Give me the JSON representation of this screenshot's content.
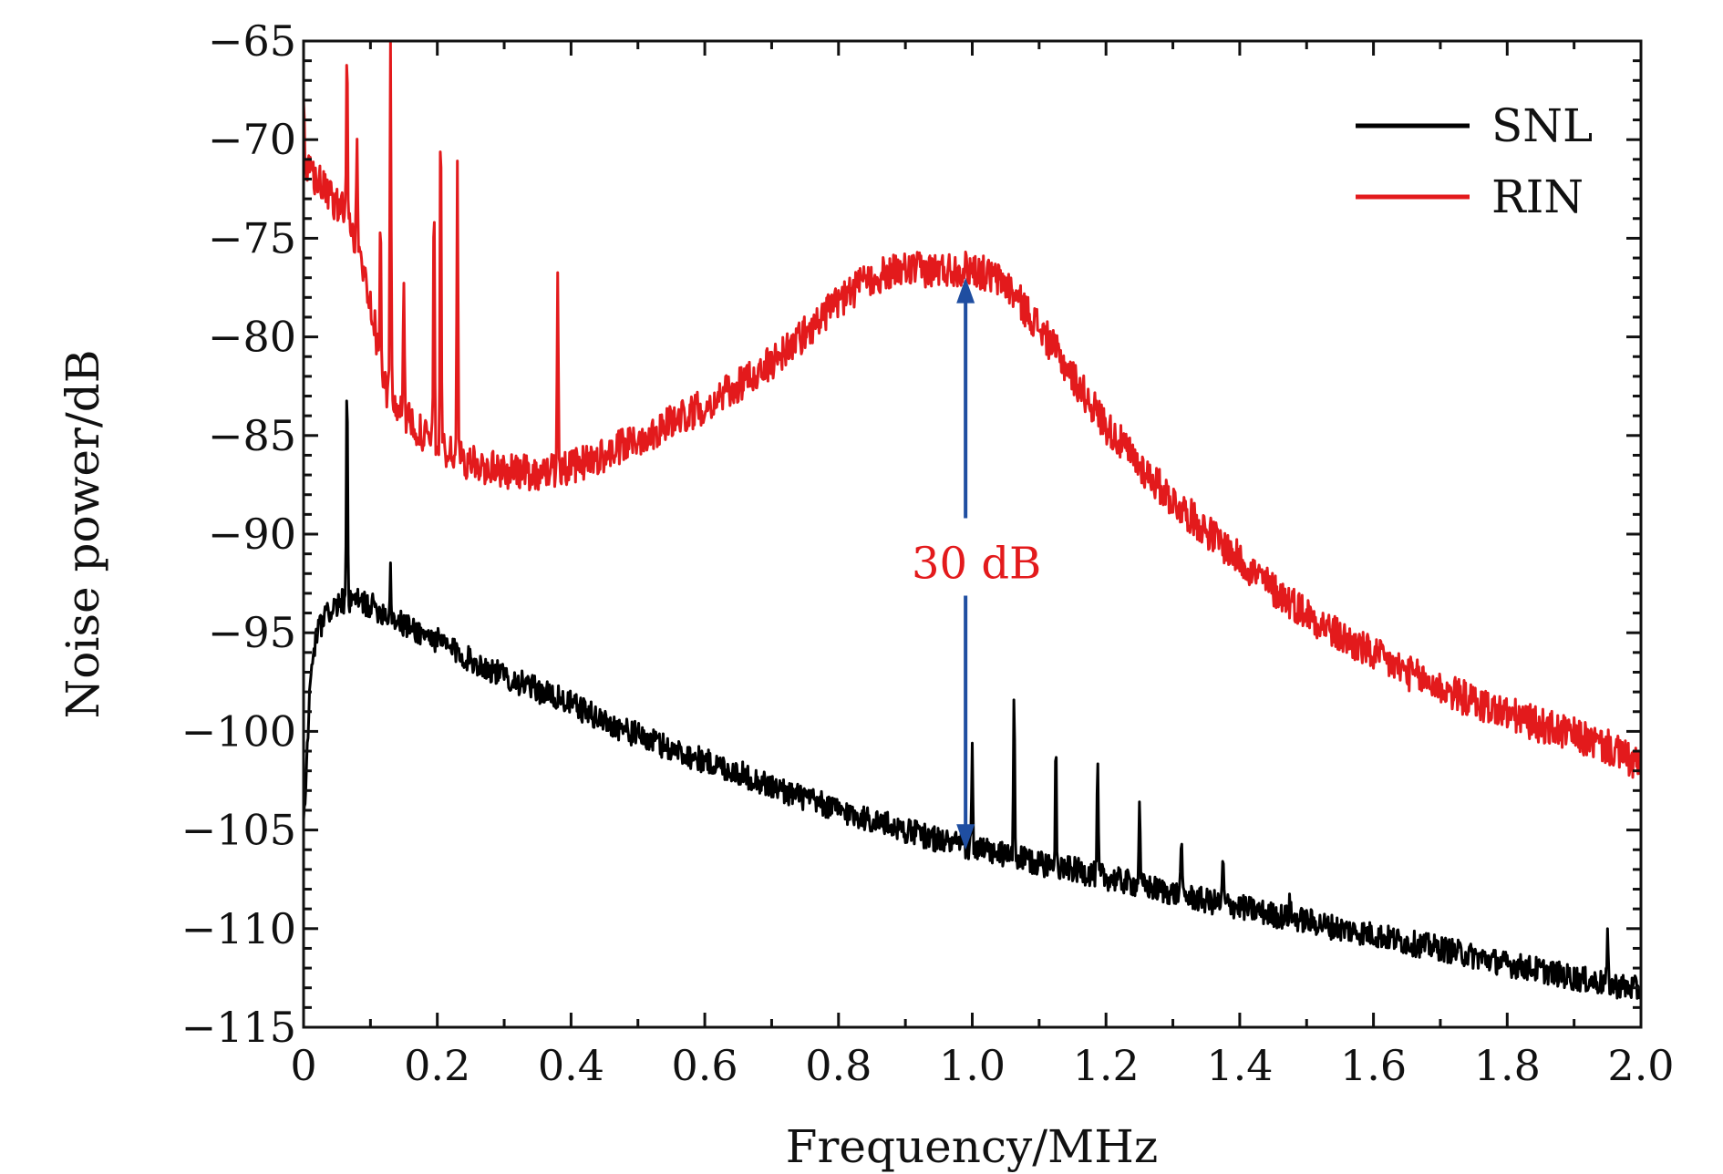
{
  "chart_data": {
    "type": "line",
    "title": "",
    "xlabel": "Frequency/MHz",
    "ylabel": "Noise power/dB",
    "xlim": [
      0,
      2.0
    ],
    "ylim": [
      -115,
      -65
    ],
    "xticks": [
      0,
      0.2,
      0.4,
      0.6,
      0.8,
      1.0,
      1.2,
      1.4,
      1.6,
      1.8,
      2.0
    ],
    "xtick_labels": [
      "0",
      "0.2",
      "0.4",
      "0.6",
      "0.8",
      "1.0",
      "1.2",
      "1.4",
      "1.6",
      "1.8",
      "2.0"
    ],
    "yticks": [
      -65,
      -70,
      -75,
      -80,
      -85,
      -90,
      -95,
      -100,
      -105,
      -110,
      -115
    ],
    "ytick_labels": [
      "−65",
      "−70",
      "−75",
      "−80",
      "−85",
      "−90",
      "−95",
      "−100",
      "−105",
      "−110",
      "−115"
    ],
    "grid": false,
    "legend_position": "top-right",
    "series": [
      {
        "name": "SNL",
        "color": "#000000",
        "x": [
          0.0,
          0.01,
          0.02,
          0.04,
          0.06,
          0.08,
          0.1,
          0.15,
          0.2,
          0.25,
          0.3,
          0.35,
          0.4,
          0.45,
          0.5,
          0.55,
          0.6,
          0.65,
          0.7,
          0.75,
          0.8,
          0.85,
          0.9,
          0.95,
          1.0,
          1.05,
          1.1,
          1.15,
          1.2,
          1.25,
          1.3,
          1.35,
          1.4,
          1.45,
          1.5,
          1.55,
          1.6,
          1.65,
          1.7,
          1.75,
          1.8,
          1.85,
          1.9,
          1.95,
          2.0
        ],
        "y": [
          -105,
          -97.5,
          -95.0,
          -93.8,
          -93.4,
          -93.4,
          -93.6,
          -94.6,
          -95.4,
          -96.4,
          -97.2,
          -97.9,
          -98.6,
          -99.5,
          -100.2,
          -100.9,
          -101.5,
          -102.1,
          -102.8,
          -103.4,
          -104.0,
          -104.5,
          -105.0,
          -105.5,
          -105.9,
          -106.3,
          -106.7,
          -107.0,
          -107.4,
          -107.8,
          -108.2,
          -108.6,
          -108.9,
          -109.3,
          -109.6,
          -110.0,
          -110.3,
          -110.7,
          -111.0,
          -111.4,
          -111.8,
          -112.1,
          -112.5,
          -112.8,
          -113.1
        ],
        "spikes": [
          {
            "x": 0.065,
            "y": -82.0
          },
          {
            "x": 0.13,
            "y": -91.8
          },
          {
            "x": 1.0,
            "y": -100.8
          },
          {
            "x": 1.0625,
            "y": -97.6
          },
          {
            "x": 1.125,
            "y": -99.7
          },
          {
            "x": 1.1875,
            "y": -101.8
          },
          {
            "x": 1.25,
            "y": -103.3
          },
          {
            "x": 1.3125,
            "y": -105.2
          },
          {
            "x": 1.375,
            "y": -106.3
          },
          {
            "x": 1.475,
            "y": -108.5
          },
          {
            "x": 1.95,
            "y": -110.6
          }
        ]
      },
      {
        "name": "RIN",
        "color": "#e31a1c",
        "x": [
          0.0,
          0.02,
          0.04,
          0.06,
          0.08,
          0.1,
          0.12,
          0.15,
          0.18,
          0.2,
          0.25,
          0.3,
          0.35,
          0.4,
          0.45,
          0.5,
          0.55,
          0.6,
          0.65,
          0.7,
          0.75,
          0.8,
          0.85,
          0.9,
          0.95,
          1.0,
          1.05,
          1.1,
          1.15,
          1.2,
          1.25,
          1.3,
          1.35,
          1.4,
          1.45,
          1.5,
          1.55,
          1.6,
          1.65,
          1.7,
          1.75,
          1.8,
          1.85,
          1.9,
          1.95,
          2.0
        ],
        "y": [
          -71.5,
          -72.0,
          -73.0,
          -73.5,
          -75.5,
          -78.0,
          -82.5,
          -84.0,
          -85.0,
          -85.6,
          -86.4,
          -86.8,
          -86.9,
          -86.6,
          -86.0,
          -85.2,
          -84.3,
          -83.5,
          -82.5,
          -81.3,
          -79.8,
          -78.2,
          -77.0,
          -76.6,
          -76.6,
          -76.5,
          -77.3,
          -79.5,
          -82.0,
          -84.5,
          -86.5,
          -88.3,
          -89.8,
          -91.3,
          -92.8,
          -94.0,
          -95.2,
          -96.1,
          -97.0,
          -97.8,
          -98.5,
          -99.1,
          -99.7,
          -100.2,
          -100.8,
          -101.8
        ],
        "spikes": [
          {
            "x": 0.0,
            "y": -68.0
          },
          {
            "x": 0.065,
            "y": -65.0
          },
          {
            "x": 0.08,
            "y": -69.5
          },
          {
            "x": 0.115,
            "y": -73.5
          },
          {
            "x": 0.13,
            "y": -65.0
          },
          {
            "x": 0.15,
            "y": -76.5
          },
          {
            "x": 0.195,
            "y": -72.0
          },
          {
            "x": 0.205,
            "y": -68.0
          },
          {
            "x": 0.23,
            "y": -71.0
          },
          {
            "x": 0.38,
            "y": -76.0
          }
        ]
      }
    ],
    "annotations": [
      {
        "text": "30 dB",
        "color": "#e31a1c",
        "arrow_color": "#1f4ea1",
        "arrow_x": 0.99,
        "arrow_from": -106.0,
        "arrow_to": -77.0,
        "label_y": -91.5
      }
    ]
  }
}
